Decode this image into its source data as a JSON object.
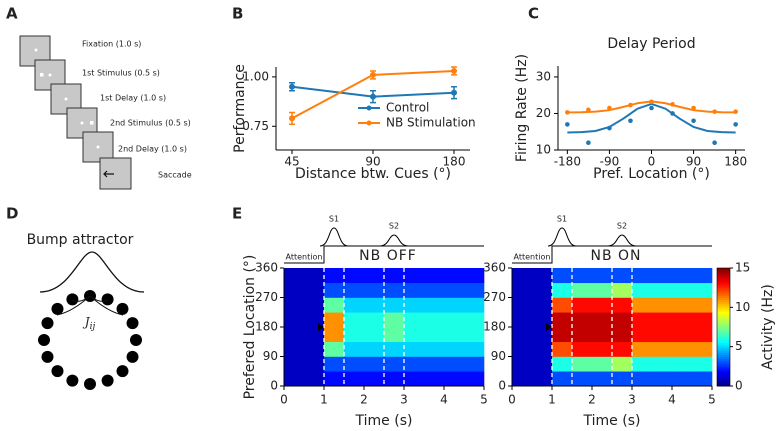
{
  "panel_labels": [
    "A",
    "B",
    "C",
    "D",
    "E"
  ],
  "task": {
    "steps": [
      "Fixation (1.0 s)",
      "1st Stimulus (0.5 s)",
      "1st Delay (1.0 s)",
      "2nd Stimulus (0.5 s)",
      "2nd Delay (1.0 s)",
      "Saccade"
    ]
  },
  "bump": {
    "title": "Bump attractor",
    "coupling": {
      "symbol": "J",
      "subscript": "ij"
    }
  },
  "chart_data": [
    {
      "type": "line",
      "xlabel": "Distance btw. Cues (°)",
      "ylabel": "Performance",
      "categories": [
        "45",
        "90",
        "180"
      ],
      "ylim": [
        0.63,
        1.05
      ],
      "yticks": [
        {
          "value": 0.75,
          "label": "0.75"
        },
        {
          "value": 1.0,
          "label": "1.00"
        }
      ],
      "legend": "lower right",
      "series": [
        {
          "name": "Control",
          "color": "#1f77b4",
          "values": [
            0.95,
            0.9,
            0.92
          ],
          "errors": [
            0.02,
            0.03,
            0.03
          ]
        },
        {
          "name": "NB Stimulation",
          "color": "#ff7f0e",
          "values": [
            0.79,
            1.01,
            1.03
          ],
          "errors": [
            0.03,
            0.02,
            0.02
          ]
        }
      ]
    },
    {
      "type": "scatter",
      "title": "Delay Period",
      "xlabel": "Pref. Location (°)",
      "ylabel": "Firing Rate (Hz)",
      "xlim": [
        -200,
        200
      ],
      "ylim": [
        10,
        33
      ],
      "xticks": [
        -180,
        -90,
        0,
        90,
        180
      ],
      "yticks": [
        10,
        20,
        30
      ],
      "series": [
        {
          "color": "#ff7f0e",
          "x": [
            -180,
            -135,
            -90,
            -45,
            0,
            45,
            90,
            135,
            180
          ],
          "values": [
            20.3,
            21,
            21.5,
            22.3,
            23.2,
            22.5,
            21.5,
            20.5,
            20.5
          ]
        },
        {
          "color": "#1f77b4",
          "x": [
            -180,
            -135,
            -90,
            -45,
            0,
            45,
            90,
            135,
            180
          ],
          "values": [
            17,
            12,
            16,
            18,
            21.5,
            20,
            18,
            12,
            17
          ]
        }
      ],
      "fits": [
        {
          "color": "#ff7f0e",
          "x": [
            -180,
            -150,
            -120,
            -90,
            -60,
            -30,
            0,
            30,
            60,
            90,
            120,
            150,
            180
          ],
          "values": [
            20.3,
            20.33,
            20.5,
            20.9,
            21.8,
            22.8,
            23.3,
            22.8,
            21.8,
            20.9,
            20.5,
            20.33,
            20.3
          ]
        },
        {
          "color": "#1f77b4",
          "x": [
            -180,
            -150,
            -120,
            -90,
            -60,
            -30,
            0,
            30,
            60,
            90,
            120,
            150,
            180
          ],
          "values": [
            14.8,
            14.9,
            15.2,
            16.3,
            18.6,
            21.3,
            22.6,
            21.3,
            18.6,
            16.3,
            15.2,
            14.9,
            14.8
          ]
        }
      ]
    },
    {
      "type": "heatmap",
      "xlabel": "Time (s)",
      "ylabel": "Prefered Location (°)",
      "xlim": [
        0,
        5
      ],
      "ylim": [
        0,
        360
      ],
      "xticks": [
        0,
        1,
        2,
        3,
        4,
        5
      ],
      "yticks": [
        0,
        90,
        180,
        270,
        360
      ],
      "xbins": [
        0,
        0.5,
        1,
        1.5,
        2,
        2.5,
        3,
        3.5,
        4,
        4.5,
        5
      ],
      "ybins": [
        0,
        45,
        90,
        135,
        180,
        225,
        270,
        315,
        360
      ],
      "clim": [
        0,
        15
      ],
      "vlines": [
        1,
        1.5,
        2.5,
        3
      ],
      "annotations": {
        "attention": "Attention",
        "s1": "S1",
        "s2": "S2",
        "condition": "NB OFF"
      },
      "values": [
        [
          1,
          1,
          2,
          2,
          2,
          2,
          2,
          2,
          2,
          2
        ],
        [
          1,
          1,
          3,
          3,
          3,
          3,
          3,
          3,
          3,
          3
        ],
        [
          1,
          1,
          7,
          5,
          5,
          5,
          5,
          5,
          5,
          5
        ],
        [
          1,
          1,
          11,
          6,
          6,
          7,
          6,
          6,
          6,
          6
        ],
        [
          1,
          1,
          11,
          6,
          6,
          7,
          6,
          6,
          6,
          6
        ],
        [
          1,
          1,
          7,
          5,
          5,
          5,
          5,
          5,
          5,
          5
        ],
        [
          1,
          1,
          3,
          3,
          3,
          3,
          3,
          3,
          3,
          3
        ],
        [
          1,
          1,
          2,
          2,
          2,
          2,
          2,
          2,
          2,
          2
        ]
      ]
    },
    {
      "type": "heatmap",
      "xlabel": "Time (s)",
      "xlim": [
        0,
        5
      ],
      "ylim": [
        0,
        360
      ],
      "xticks": [
        0,
        1,
        2,
        3,
        4,
        5
      ],
      "yticks": [
        0,
        90,
        180,
        270,
        360
      ],
      "xbins": [
        0,
        0.5,
        1,
        1.5,
        2,
        2.5,
        3,
        3.5,
        4,
        4.5,
        5
      ],
      "ybins": [
        0,
        45,
        90,
        135,
        180,
        225,
        270,
        315,
        360
      ],
      "clim": [
        0,
        15
      ],
      "vlines": [
        1,
        1.5,
        2.5,
        3
      ],
      "annotations": {
        "attention": "Attention",
        "s1": "S1",
        "s2": "S2",
        "condition": "NB ON"
      },
      "colorbar": {
        "label": "Activity (Hz)",
        "ticks": [
          0,
          5,
          10,
          15
        ]
      },
      "values": [
        [
          1,
          1,
          3,
          3,
          3,
          3,
          3,
          3,
          3,
          3
        ],
        [
          1,
          1,
          6,
          7,
          7,
          8,
          6,
          6,
          6,
          6
        ],
        [
          1,
          1,
          12,
          13,
          13,
          13,
          11,
          11,
          11,
          11
        ],
        [
          1,
          1,
          14,
          14,
          14,
          14,
          13,
          13,
          13,
          13
        ],
        [
          1,
          1,
          14,
          14,
          14,
          14,
          13,
          13,
          13,
          13
        ],
        [
          1,
          1,
          12,
          13,
          13,
          13,
          11,
          11,
          11,
          11
        ],
        [
          1,
          1,
          6,
          7,
          7,
          8,
          6,
          6,
          6,
          6
        ],
        [
          1,
          1,
          3,
          3,
          3,
          3,
          3,
          3,
          3,
          3
        ]
      ]
    }
  ]
}
